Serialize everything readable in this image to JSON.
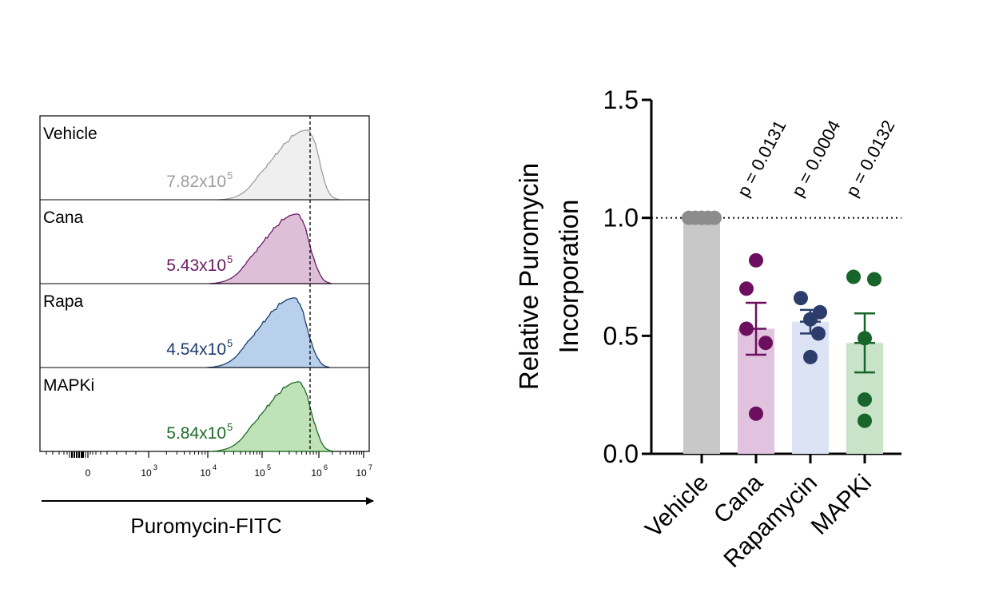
{
  "chart_data": [
    {
      "type": "area",
      "xscale": "log",
      "xlabel": "Puromycin-FITC",
      "x_ticks": [
        {
          "base": "0",
          "exp": ""
        },
        {
          "base": "10",
          "exp": "3"
        },
        {
          "base": "10",
          "exp": "4"
        },
        {
          "base": "10",
          "exp": "5"
        },
        {
          "base": "10",
          "exp": "6"
        },
        {
          "base": "10",
          "exp": "7"
        }
      ],
      "reference_line_x": 700000,
      "panels": [
        {
          "name": "Vehicle",
          "mfi_text": "7.82x10",
          "mfi_exp": "5",
          "mfi": 782000,
          "peak_x": 630000,
          "color": "#9e9e9e",
          "fill": "#efefef"
        },
        {
          "name": "Cana",
          "mfi_text": "5.43x10",
          "mfi_exp": "5",
          "mfi": 543000,
          "peak_x": 420000,
          "color": "#6b1a63",
          "fill": "#ddbfd8"
        },
        {
          "name": "Rapa",
          "mfi_text": "4.54x10",
          "mfi_exp": "5",
          "mfi": 454000,
          "peak_x": 380000,
          "color": "#1f3f6e",
          "fill": "#b9d0ec"
        },
        {
          "name": "MAPKi",
          "mfi_text": "5.84x10",
          "mfi_exp": "5",
          "mfi": 584000,
          "peak_x": 450000,
          "color": "#1e6b28",
          "fill": "#bfe2b8"
        }
      ]
    },
    {
      "type": "bar",
      "ylabel": [
        "Relative Puromycin",
        "Incorporation"
      ],
      "ylim": [
        0,
        1.5
      ],
      "yticks": [
        "0.0",
        "0.5",
        "1.0",
        "1.5"
      ],
      "reference_line_y": 1.0,
      "categories": [
        "Vehicle",
        "Cana",
        "Rapamycin",
        "MAPKi"
      ],
      "series": [
        {
          "category": "Vehicle",
          "mean": 1.0,
          "sem": 0,
          "p_value": "",
          "points": [
            1.0,
            1.0,
            1.0,
            1.0,
            1.0
          ],
          "color": "#8c8c8c",
          "bar_color": "#c8c8c8"
        },
        {
          "category": "Cana",
          "mean": 0.53,
          "sem": 0.11,
          "p_value": "p = 0.0131",
          "points": [
            0.82,
            0.7,
            0.53,
            0.47,
            0.17
          ],
          "color": "#6b0f5e",
          "bar_color": "#e2c3df"
        },
        {
          "category": "Rapamycin",
          "mean": 0.56,
          "sem": 0.05,
          "p_value": "p = 0.0004",
          "points": [
            0.66,
            0.6,
            0.57,
            0.51,
            0.41
          ],
          "color": "#2c3d6b",
          "bar_color": "#dbe3f4"
        },
        {
          "category": "MAPKi",
          "mean": 0.47,
          "sem": 0.125,
          "p_value": "p = 0.0132",
          "points": [
            0.75,
            0.74,
            0.49,
            0.23,
            0.14
          ],
          "color": "#17652a",
          "bar_color": "#c8e3c8"
        }
      ]
    }
  ]
}
